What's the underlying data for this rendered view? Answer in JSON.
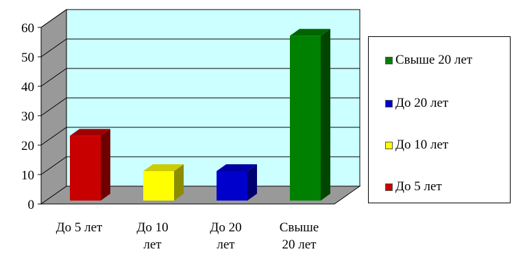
{
  "chart_data": {
    "type": "bar",
    "style": "3d",
    "categories": [
      "До 5 лет",
      "До 10 лет",
      "До 20 лет",
      "Свыше 20 лет"
    ],
    "category_lines": [
      [
        "До 5 лет"
      ],
      [
        "До 10",
        "лет"
      ],
      [
        "До 20",
        "лет"
      ],
      [
        "Свыше",
        "20 лет"
      ]
    ],
    "values": [
      22,
      10,
      10,
      56
    ],
    "colors": [
      "#c80000",
      "#ffff00",
      "#0000cc",
      "#008000"
    ],
    "ylim": [
      0,
      60
    ],
    "yticks": [
      0,
      10,
      20,
      30,
      40,
      50,
      60
    ],
    "grid": true,
    "title": "",
    "xlabel": "",
    "ylabel": "",
    "wall_color": "#ccffff",
    "side_wall_color": "#999999",
    "floor_color": "#999999",
    "legend_position": "right"
  },
  "legend": {
    "items": [
      {
        "label": "Свыше 20 лет",
        "color": "#008000"
      },
      {
        "label": "До 20 лет",
        "color": "#0000cc"
      },
      {
        "label": "До 10 лет",
        "color": "#ffff00"
      },
      {
        "label": "До 5 лет",
        "color": "#c80000"
      }
    ]
  }
}
